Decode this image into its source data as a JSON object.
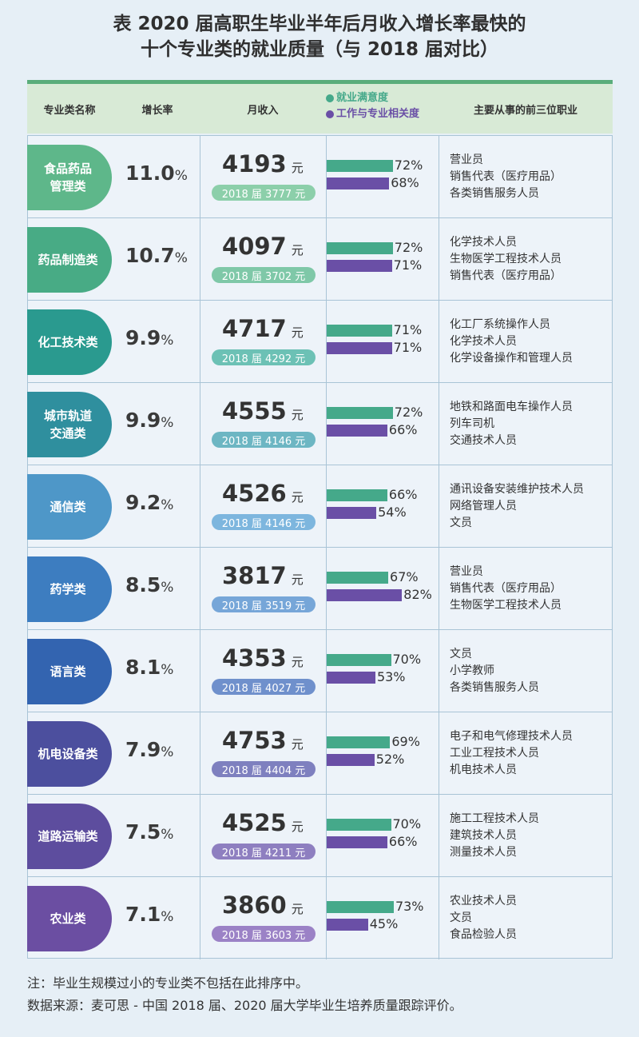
{
  "title": {
    "line1": "表 2020 届高职生毕业半年后月收入增长率最快的",
    "line2": "十个专业类的就业质量（与 2018 届对比）"
  },
  "headers": {
    "major": "专业类名称",
    "growth": "增长率",
    "income": "月收入",
    "legend_satisfaction": "就业满意度",
    "legend_relevance": "工作与专业相关度",
    "jobs": "主要从事的前三位职业"
  },
  "colors": {
    "satisfaction": "#45a98a",
    "relevance": "#6a4fa6",
    "header_bar": "#5aad7b"
  },
  "units": {
    "percent": "%",
    "yuan": "元",
    "prev_prefix": "2018 届"
  },
  "chart_data": {
    "type": "table",
    "rows": [
      {
        "major": [
          "食品药品",
          "管理类"
        ],
        "growth": "11.0",
        "income": "4193",
        "income_2018": "3777",
        "satisfaction": 72,
        "relevance": 68,
        "jobs": [
          "营业员",
          "销售代表（医疗用品）",
          "各类销售服务人员"
        ],
        "color": "#5eb78a",
        "prev_color": "#8ccfaa"
      },
      {
        "major": [
          "药品制造类"
        ],
        "growth": "10.7",
        "income": "4097",
        "income_2018": "3702",
        "satisfaction": 72,
        "relevance": 71,
        "jobs": [
          "化学技术人员",
          "生物医学工程技术人员",
          "销售代表（医疗用品）"
        ],
        "color": "#48ab85",
        "prev_color": "#7fc8a8"
      },
      {
        "major": [
          "化工技术类"
        ],
        "growth": "9.9",
        "income": "4717",
        "income_2018": "4292",
        "satisfaction": 71,
        "relevance": 71,
        "jobs": [
          "化工厂系统操作人员",
          "化学技术人员",
          "化学设备操作和管理人员"
        ],
        "color": "#2a9a8f",
        "prev_color": "#6cc1b5"
      },
      {
        "major": [
          "城市轨道",
          "交通类"
        ],
        "growth": "9.9",
        "income": "4555",
        "income_2018": "4146",
        "satisfaction": 72,
        "relevance": 66,
        "jobs": [
          "地铁和路面电车操作人员",
          "列车司机",
          "交通技术人员"
        ],
        "color": "#2f8f9e",
        "prev_color": "#6db6c3"
      },
      {
        "major": [
          "通信类"
        ],
        "growth": "9.2",
        "income": "4526",
        "income_2018": "4146",
        "satisfaction": 66,
        "relevance": 54,
        "jobs": [
          "通讯设备安装维护技术人员",
          "网络管理人员",
          "文员"
        ],
        "color": "#4e97c8",
        "prev_color": "#7db6de"
      },
      {
        "major": [
          "药学类"
        ],
        "growth": "8.5",
        "income": "3817",
        "income_2018": "3519",
        "satisfaction": 67,
        "relevance": 82,
        "jobs": [
          "营业员",
          "销售代表（医疗用品）",
          "生物医学工程技术人员"
        ],
        "color": "#3d7dc0",
        "prev_color": "#76a6d8"
      },
      {
        "major": [
          "语言类"
        ],
        "growth": "8.1",
        "income": "4353",
        "income_2018": "4027",
        "satisfaction": 70,
        "relevance": 53,
        "jobs": [
          "文员",
          "小学教师",
          "各类销售服务人员"
        ],
        "color": "#3364b0",
        "prev_color": "#6f90cc"
      },
      {
        "major": [
          "机电设备类"
        ],
        "growth": "7.9",
        "income": "4753",
        "income_2018": "4404",
        "satisfaction": 69,
        "relevance": 52,
        "jobs": [
          "电子和电气修理技术人员",
          "工业工程技术人员",
          "机电技术人员"
        ],
        "color": "#4c4f9e",
        "prev_color": "#7e80bf"
      },
      {
        "major": [
          "道路运输类"
        ],
        "growth": "7.5",
        "income": "4525",
        "income_2018": "4211",
        "satisfaction": 70,
        "relevance": 66,
        "jobs": [
          "施工工程技术人员",
          "建筑技术人员",
          "测量技术人员"
        ],
        "color": "#5d4d9e",
        "prev_color": "#8e7fc0"
      },
      {
        "major": [
          "农业类"
        ],
        "growth": "7.1",
        "income": "3860",
        "income_2018": "3603",
        "satisfaction": 73,
        "relevance": 45,
        "jobs": [
          "农业技术人员",
          "文员",
          "食品检验人员"
        ],
        "color": "#6b4ea2",
        "prev_color": "#9b82c6"
      }
    ]
  },
  "notes": {
    "note": "注：毕业生规模过小的专业类不包括在此排序中。",
    "source": "数据来源：麦可思 - 中国 2018 届、2020 届大学毕业生培养质量跟踪评价。"
  }
}
